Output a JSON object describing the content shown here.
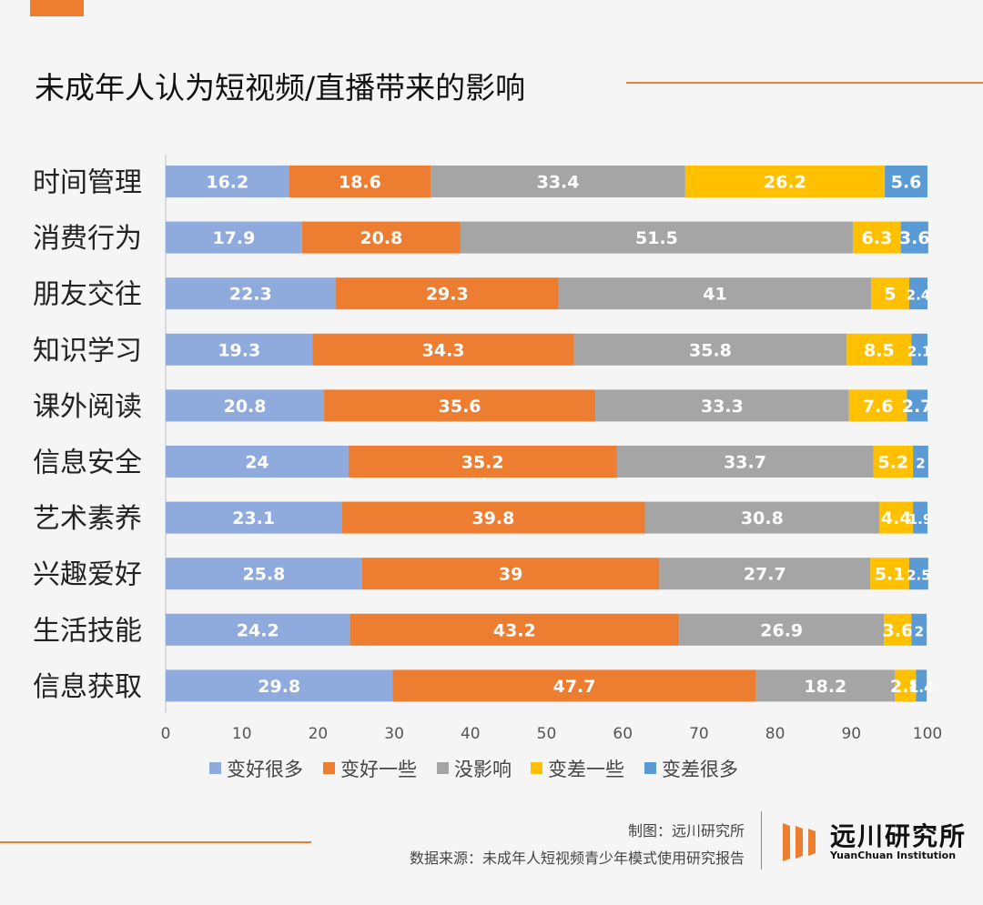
{
  "header": {
    "title": "未成年人认为短视频/直播带来的影响"
  },
  "footer": {
    "credit": "制图：远川研究所",
    "source": "数据来源：未成年人短视频青少年模式使用研究报告",
    "logo_cn": "远川研究所",
    "logo_en": "YuanChuan Institution"
  },
  "colors": {
    "变好很多": "#8faadc",
    "变好一些": "#ed7d31",
    "没影响": "#a5a5a5",
    "变差一些": "#ffc000",
    "变差很多": "#5b9bd5",
    "accent": "#ed7d31"
  },
  "chart_data": {
    "type": "bar",
    "orientation": "horizontal",
    "stacked": true,
    "title": "未成年人认为短视频/直播带来的影响",
    "categories": [
      "时间管理",
      "消费行为",
      "朋友交往",
      "知识学习",
      "课外阅读",
      "信息安全",
      "艺术素养",
      "兴趣爱好",
      "生活技能",
      "信息获取"
    ],
    "series": [
      {
        "name": "变好很多",
        "values": [
          16.2,
          17.9,
          22.3,
          19.3,
          20.8,
          24,
          23.1,
          25.8,
          24.2,
          29.8
        ]
      },
      {
        "name": "变好一些",
        "values": [
          18.6,
          20.8,
          29.3,
          34.3,
          35.6,
          35.2,
          39.8,
          39,
          43.2,
          47.7
        ]
      },
      {
        "name": "没影响",
        "values": [
          33.4,
          51.5,
          41,
          35.8,
          33.3,
          33.7,
          30.8,
          27.7,
          26.9,
          18.2
        ]
      },
      {
        "name": "变差一些",
        "values": [
          26.2,
          6.3,
          5,
          8.5,
          7.6,
          5.2,
          4.4,
          5.1,
          3.6,
          2.8
        ]
      },
      {
        "name": "变差很多",
        "values": [
          5.6,
          3.6,
          2.4,
          2.1,
          2.7,
          2,
          1.9,
          2.5,
          2,
          1.4
        ]
      }
    ],
    "xlim": [
      0,
      100
    ],
    "xticks": [
      0,
      10,
      20,
      30,
      40,
      50,
      60,
      70,
      80,
      90,
      100
    ],
    "legend_position": "bottom"
  }
}
